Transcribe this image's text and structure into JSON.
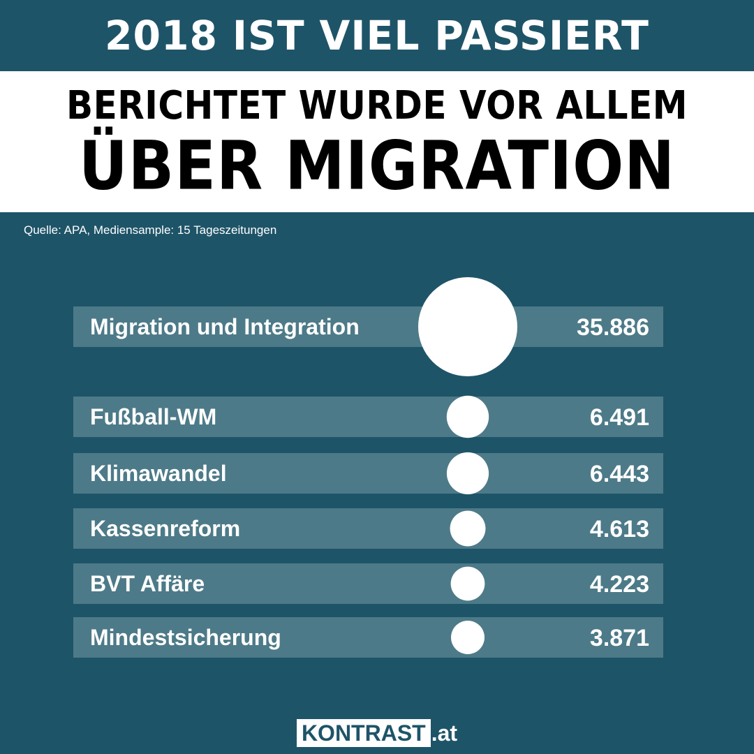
{
  "header": {
    "banner": "2018 IST VIEL PASSIERT",
    "headline_line1": "BERICHTET WURDE VOR ALLEM",
    "headline_line2": "ÜBER MIGRATION"
  },
  "source": "Quelle: APA, Mediensample: 15 Tageszeitungen",
  "colors": {
    "background": "#1e5468",
    "bar": "#4d7a88",
    "bubble": "#ffffff",
    "text": "#ffffff"
  },
  "chart_data": {
    "type": "bar",
    "encoding": "bubble-size",
    "categories": [
      "Migration und Integration",
      "Fußball-WM",
      "Klimawandel",
      "Kassenreform",
      "BVT Affäre",
      "Mindestsicherung"
    ],
    "values": [
      35886,
      6491,
      6443,
      4613,
      4223,
      3871
    ],
    "value_labels": [
      "35.886",
      "6.491",
      "6.443",
      "4.613",
      "4.223",
      "3.871"
    ]
  },
  "logo": {
    "brand": "KONTRAST",
    "suffix": ".at"
  }
}
